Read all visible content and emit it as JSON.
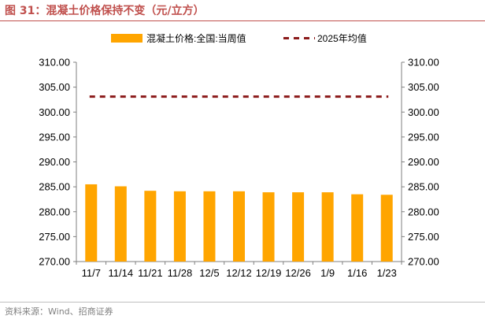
{
  "figure": {
    "title": "图 31：混凝土价格保持不变（元/立方）",
    "source": "资料来源：Wind、招商证券"
  },
  "colors": {
    "bar": "#ffa500",
    "avg_line": "#8b1a1a",
    "axis": "#7f7f7f",
    "title": "#c0504d"
  },
  "chart_data": {
    "type": "bar",
    "title": "",
    "xlabel": "",
    "ylabel": "",
    "categories": [
      "11/7",
      "11/14",
      "11/21",
      "11/28",
      "12/5",
      "12/12",
      "12/19",
      "12/26",
      "1/9",
      "1/16",
      "1/23"
    ],
    "series": [
      {
        "name": "混凝土价格:全国:当周值",
        "type": "bar",
        "values": [
          285.5,
          285.1,
          284.2,
          284.1,
          284.1,
          284.1,
          283.9,
          283.9,
          283.9,
          283.5,
          283.4
        ]
      },
      {
        "name": "2025年均值",
        "type": "line",
        "style": "dashed",
        "values": [
          303.1,
          303.1,
          303.1,
          303.1,
          303.1,
          303.1,
          303.1,
          303.1,
          303.1,
          303.1,
          303.1
        ]
      }
    ],
    "ylim": [
      270,
      310
    ],
    "yticks": [
      "270.00",
      "275.00",
      "280.00",
      "285.00",
      "290.00",
      "295.00",
      "300.00",
      "305.00",
      "310.00"
    ],
    "y2ticks": [
      "270.00",
      "275.00",
      "280.00",
      "285.00",
      "290.00",
      "295.00",
      "300.00",
      "305.00",
      "310.00"
    ],
    "grid": false,
    "legend": "top-center"
  }
}
